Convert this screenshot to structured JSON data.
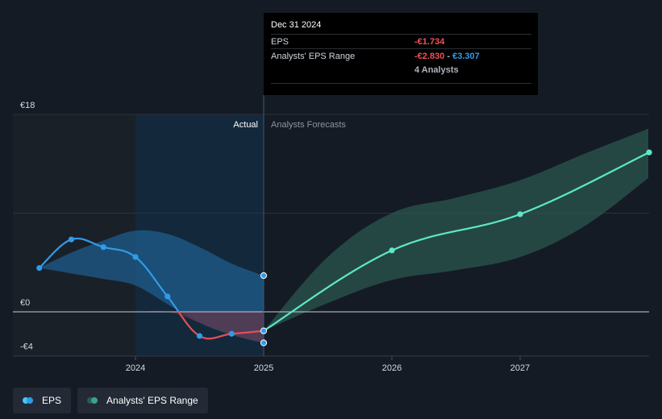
{
  "tooltip": {
    "date": "Dec 31 2024",
    "eps_label": "EPS",
    "eps_value": "-€1.734",
    "range_label": "Analysts' EPS Range",
    "range_low": "-€2.830",
    "range_sep": " - ",
    "range_high": "€3.307",
    "analysts": "4 Analysts"
  },
  "regions": {
    "actual": "Actual",
    "forecast": "Analysts Forecasts"
  },
  "legend": {
    "eps": "EPS",
    "range": "Analysts' EPS Range"
  },
  "colors": {
    "background": "#151b24",
    "eps_actual": "#2f9bea",
    "eps_negative": "#e0505a",
    "eps_forecast": "#5ee8c8",
    "range_actual": "#1f5f92",
    "range_forecast": "#2c5a52",
    "legend_eps_dot": "#46c8f5",
    "legend_range_dot": "#3aa294"
  },
  "chart_data": {
    "type": "line",
    "currency": "€",
    "y_ticks": [
      {
        "value": 18,
        "label": "€18"
      },
      {
        "value": 0,
        "label": "€0"
      },
      {
        "value": -4,
        "label": "-€4"
      }
    ],
    "x_ticks": [
      {
        "value": 2024.0,
        "label": "2024"
      },
      {
        "value": 2025.0,
        "label": "2025"
      },
      {
        "value": 2026.0,
        "label": "2026"
      },
      {
        "value": 2027.0,
        "label": "2027"
      }
    ],
    "ylim": [
      -4,
      18
    ],
    "xlim": [
      2023.0,
      2028.0
    ],
    "divider_x": 2025.0,
    "eps_actual": [
      {
        "x": 2023.25,
        "y": 4.0
      },
      {
        "x": 2023.5,
        "y": 6.6
      },
      {
        "x": 2023.75,
        "y": 5.9
      },
      {
        "x": 2024.0,
        "y": 5.0
      },
      {
        "x": 2024.25,
        "y": 1.4
      },
      {
        "x": 2024.5,
        "y": -2.2
      },
      {
        "x": 2024.75,
        "y": -2.0
      },
      {
        "x": 2025.0,
        "y": -1.734
      }
    ],
    "eps_forecast": [
      {
        "x": 2025.0,
        "y": -1.734
      },
      {
        "x": 2026.0,
        "y": 5.6
      },
      {
        "x": 2027.0,
        "y": 8.9
      },
      {
        "x": 2028.0,
        "y": 14.5
      }
    ],
    "range_actual": {
      "x": [
        2023.25,
        2023.5,
        2023.75,
        2024.0,
        2024.25,
        2024.5,
        2024.75,
        2025.0
      ],
      "high": [
        4.0,
        5.4,
        6.5,
        7.4,
        7.1,
        5.9,
        4.4,
        3.307
      ],
      "low": [
        4.0,
        3.5,
        3.0,
        2.4,
        0.7,
        -1.0,
        -2.1,
        -2.83
      ]
    },
    "range_forecast": {
      "x": [
        2025.0,
        2025.5,
        2026.0,
        2026.5,
        2027.0,
        2027.5,
        2028.0
      ],
      "high": [
        -1.734,
        5.0,
        9.0,
        10.4,
        12.0,
        14.4,
        16.7
      ],
      "low": [
        -1.734,
        0.8,
        2.9,
        3.8,
        5.0,
        7.8,
        12.2
      ]
    }
  }
}
